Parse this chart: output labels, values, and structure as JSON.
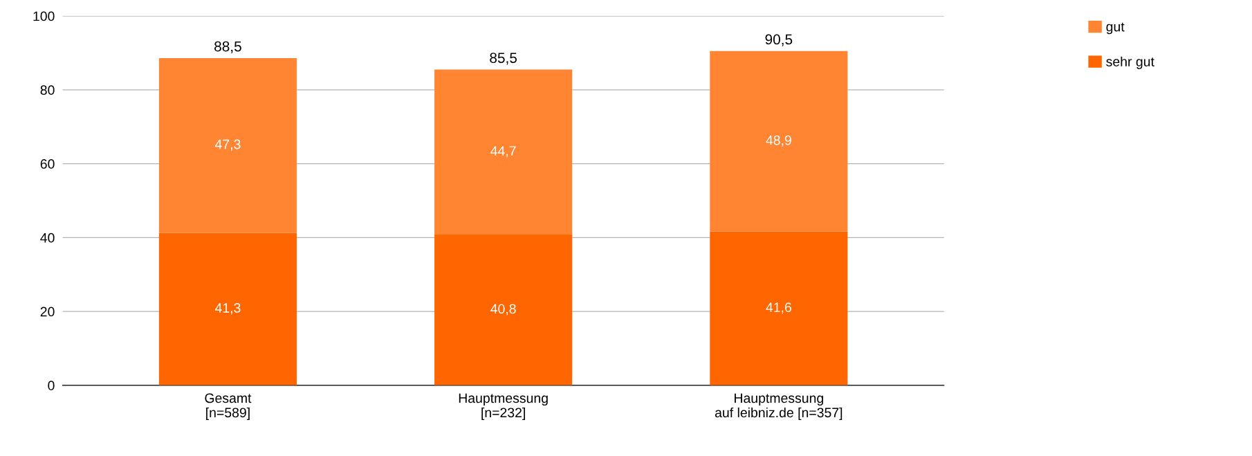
{
  "chart_data": {
    "type": "bar",
    "stacked": true,
    "categories": [
      "Gesamt\n[n=589]",
      "Hauptmessung\n[n=232]",
      "Hauptmessung\nauf leibniz.de [n=357]"
    ],
    "series": [
      {
        "name": "sehr gut",
        "color": "#ff6600",
        "values": [
          41.3,
          40.8,
          41.6
        ],
        "value_labels": [
          "41,3",
          "40,8",
          "41,6"
        ]
      },
      {
        "name": "gut",
        "color": "#ff8533",
        "values": [
          47.3,
          44.7,
          48.9
        ],
        "value_labels": [
          "47,3",
          "44,7",
          "48,9"
        ]
      }
    ],
    "totals": [
      "88,5",
      "85,5",
      "90,5"
    ],
    "ylim": [
      0,
      100
    ],
    "yticks": [
      0,
      20,
      40,
      60,
      80,
      100
    ],
    "grid": "y",
    "legend": "top right"
  }
}
